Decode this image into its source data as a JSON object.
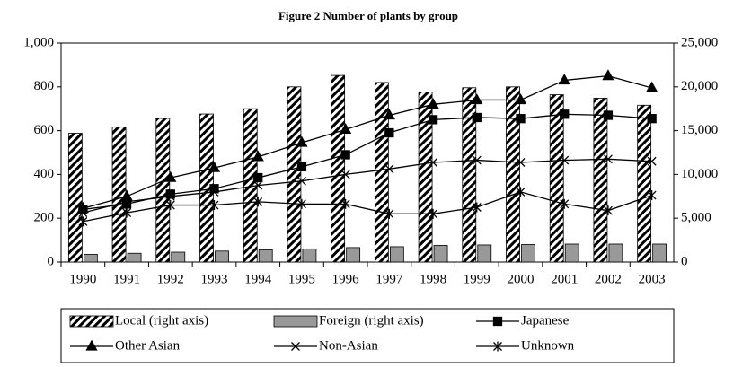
{
  "chart_data": {
    "type": "bar-line",
    "title": "Figure 2    Number of plants by group",
    "categories": [
      "1990",
      "1991",
      "1992",
      "1993",
      "1994",
      "1995",
      "1996",
      "1997",
      "1998",
      "1999",
      "2000",
      "2001",
      "2002",
      "2003"
    ],
    "series": [
      {
        "name": "Local (right axis)",
        "type": "bar",
        "axis": "y2",
        "color": "#000000",
        "pattern": "hatch",
        "values": [
          14700,
          15400,
          16400,
          16900,
          17500,
          20000,
          21300,
          20500,
          19400,
          19900,
          20000,
          19100,
          18700,
          17900
        ]
      },
      {
        "name": "Foreign (right axis)",
        "type": "bar",
        "axis": "y2",
        "color": "#999999",
        "values": [
          875,
          1000,
          1125,
          1250,
          1400,
          1500,
          1650,
          1750,
          1900,
          1950,
          2000,
          2050,
          2050,
          2050
        ]
      },
      {
        "name": "Japanese",
        "type": "line",
        "color": "#000000",
        "marker": "square",
        "values": [
          240,
          265,
          310,
          335,
          385,
          435,
          490,
          590,
          650,
          660,
          655,
          675,
          670,
          655
        ]
      },
      {
        "name": "Other Asian",
        "type": "line",
        "color": "#000000",
        "marker": "triangle",
        "values": [
          245,
          300,
          385,
          430,
          480,
          545,
          605,
          670,
          720,
          740,
          740,
          830,
          850,
          795
        ]
      },
      {
        "name": "Non-Asian",
        "type": "line",
        "color": "#000000",
        "marker": "x",
        "values": [
          225,
          275,
          300,
          320,
          350,
          370,
          400,
          425,
          455,
          465,
          455,
          465,
          470,
          460
        ]
      },
      {
        "name": "Unknown",
        "type": "line",
        "color": "#000000",
        "marker": "asterisk",
        "values": [
          185,
          225,
          260,
          260,
          275,
          265,
          265,
          220,
          220,
          250,
          320,
          265,
          235,
          305
        ]
      }
    ],
    "ylim": [
      0,
      1000
    ],
    "yticks": [
      0,
      200,
      400,
      600,
      800,
      {
        "value": 1000,
        "label": "1,000"
      }
    ],
    "y2lim": [
      0,
      25000
    ],
    "y2ticks": [
      0,
      {
        "value": 5000,
        "label": "5,000"
      },
      {
        "value": 10000,
        "label": "10,000"
      },
      {
        "value": 15000,
        "label": "15,000"
      },
      {
        "value": 20000,
        "label": "20,000"
      },
      {
        "value": 25000,
        "label": "25,000"
      }
    ],
    "legend": "bottom"
  }
}
